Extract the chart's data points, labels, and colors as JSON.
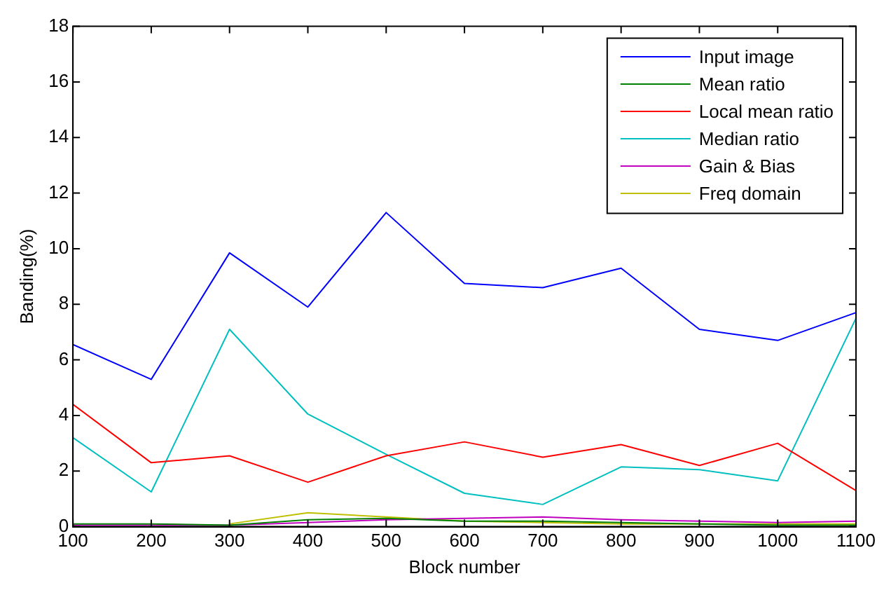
{
  "chart_data": {
    "type": "line",
    "xlabel": "Block number",
    "ylabel": "Banding(%)",
    "x": [
      100,
      200,
      300,
      400,
      500,
      600,
      700,
      800,
      900,
      1000,
      1100
    ],
    "xlim": [
      100,
      1100
    ],
    "xticks": [
      100,
      200,
      300,
      400,
      500,
      600,
      700,
      800,
      900,
      1000,
      1100
    ],
    "ylim": [
      0,
      18
    ],
    "yticks": [
      0,
      2,
      4,
      6,
      8,
      10,
      12,
      14,
      16,
      18
    ],
    "grid": false,
    "legend": "top right",
    "marker": "none",
    "line_style": "solid",
    "series": [
      {
        "name": "Input image",
        "color": "#0000ff",
        "values": [
          6.55,
          5.3,
          9.85,
          7.9,
          11.3,
          8.75,
          8.6,
          9.3,
          7.1,
          6.7,
          7.7
        ]
      },
      {
        "name": "Mean ratio",
        "color": "#008000",
        "values": [
          0.1,
          0.1,
          0.05,
          0.25,
          0.3,
          0.2,
          0.2,
          0.15,
          0.1,
          0.05,
          0.05
        ]
      },
      {
        "name": "Local mean ratio",
        "color": "#ff0000",
        "values": [
          4.4,
          2.3,
          2.55,
          1.6,
          2.55,
          3.05,
          2.5,
          2.95,
          2.2,
          3.0,
          1.3
        ]
      },
      {
        "name": "Median ratio",
        "color": "#00bfbf",
        "values": [
          3.2,
          1.25,
          7.1,
          4.05,
          2.6,
          1.2,
          0.8,
          2.15,
          2.05,
          1.65,
          7.5
        ]
      },
      {
        "name": "Gain & Bias",
        "color": "#bf00bf",
        "values": [
          0.05,
          0.05,
          0.05,
          0.15,
          0.25,
          0.3,
          0.35,
          0.25,
          0.2,
          0.15,
          0.2
        ]
      },
      {
        "name": "Freq domain",
        "color": "#bfbf00",
        "values": [
          null,
          null,
          0.1,
          0.5,
          0.35,
          0.2,
          0.15,
          0.1,
          0.1,
          0.1,
          0.1
        ]
      }
    ]
  }
}
